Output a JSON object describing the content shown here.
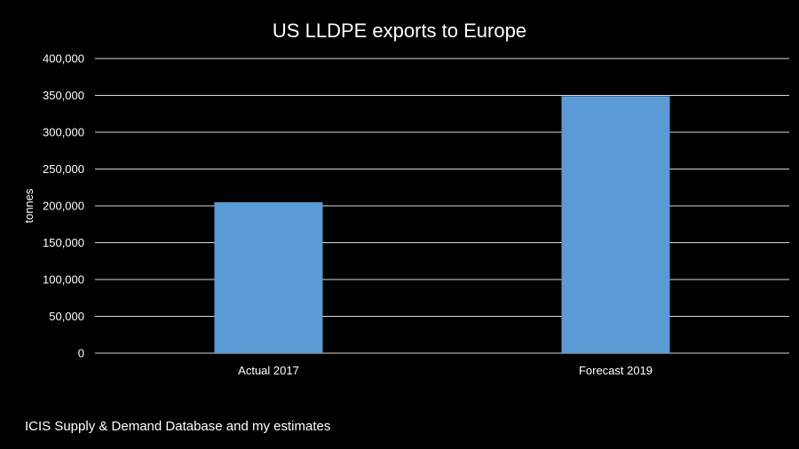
{
  "chart_data": {
    "type": "bar",
    "title": "US LLDPE exports to Europe",
    "xlabel": "",
    "ylabel": "tonnes",
    "categories": [
      "Actual 2017",
      "Forecast 2019"
    ],
    "values": [
      205000,
      349000
    ],
    "ylim": [
      0,
      400000
    ],
    "yticks": [
      "0",
      "50,000",
      "100,000",
      "150,000",
      "200,000",
      "250,000",
      "300,000",
      "350,000",
      "400,000"
    ],
    "ytick_values": [
      0,
      50000,
      100000,
      150000,
      200000,
      250000,
      300000,
      350000,
      400000
    ],
    "grid": true,
    "bar_color": "#5B9BD5",
    "gridline_color": "#D9D9D9"
  },
  "source": "ICIS Supply & Demand Database and my estimates"
}
